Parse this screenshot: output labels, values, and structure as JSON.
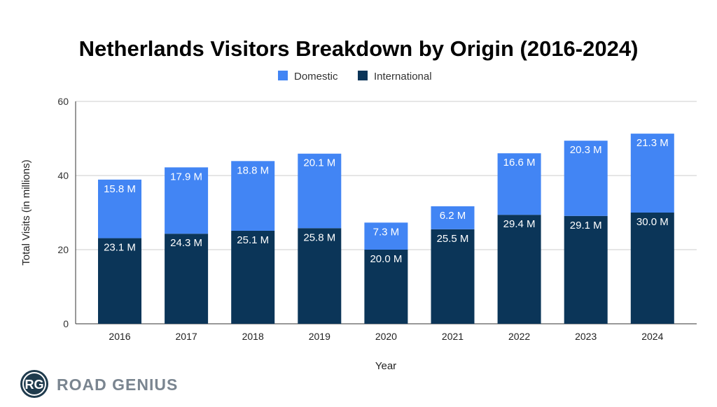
{
  "chart_data": {
    "type": "bar",
    "stacked": true,
    "title": "Netherlands Visitors Breakdown by Origin (2016-2024)",
    "xlabel": "Year",
    "ylabel": "Total Visits (in millions)",
    "ylim": [
      0,
      60
    ],
    "yticks": [
      "0",
      "20",
      "40",
      "60"
    ],
    "grid": true,
    "legend_position": "top",
    "categories": [
      "2016",
      "2017",
      "2018",
      "2019",
      "2020",
      "2021",
      "2022",
      "2023",
      "2024"
    ],
    "series": [
      {
        "name": "International",
        "color": "#0b3558",
        "values": [
          23.1,
          24.3,
          25.1,
          25.8,
          20.0,
          25.5,
          29.4,
          29.1,
          30.0
        ],
        "labels": [
          "23.1 M",
          "24.3 M",
          "25.1 M",
          "25.8 M",
          "20.0 M",
          "25.5 M",
          "29.4 M",
          "29.1 M",
          "30.0 M"
        ]
      },
      {
        "name": "Domestic",
        "color": "#4285f4",
        "values": [
          15.8,
          17.9,
          18.8,
          20.1,
          7.3,
          6.2,
          16.6,
          20.3,
          21.3
        ],
        "labels": [
          "15.8 M",
          "17.9 M",
          "18.8 M",
          "20.1 M",
          "7.3 M",
          "6.2 M",
          "16.6 M",
          "20.3 M",
          "21.3 M"
        ]
      }
    ],
    "legend": [
      "Domestic",
      "International"
    ]
  },
  "brand": {
    "logo_initials": "RG",
    "logo_text": "ROAD GENIUS"
  }
}
